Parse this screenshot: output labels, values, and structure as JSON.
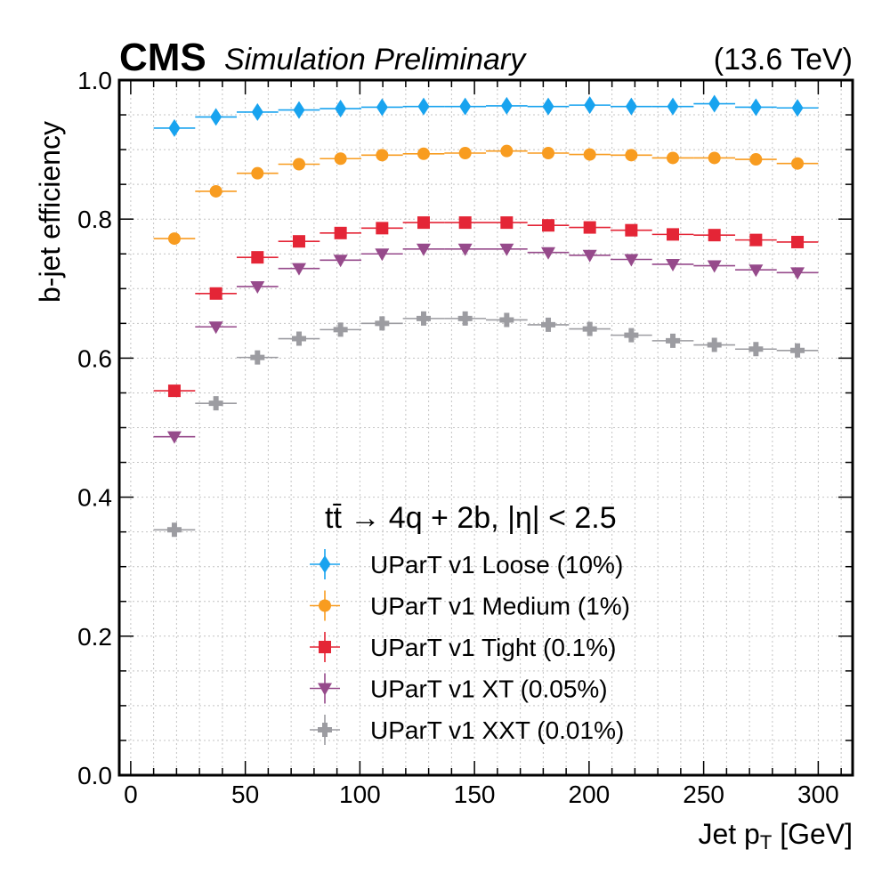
{
  "chart_data": {
    "type": "scatter",
    "header": {
      "experiment": "CMS",
      "label": "Simulation Preliminary",
      "energy": "(13.6 TeV)"
    },
    "xlabel_main": "Jet p",
    "xlabel_sub": "T",
    "xlabel_unit": " [GeV]",
    "ylabel": "b-jet efficiency",
    "xlim": [
      -5,
      315
    ],
    "ylim": [
      0.0,
      1.0
    ],
    "xticks": [
      0,
      50,
      100,
      150,
      200,
      250,
      300
    ],
    "xtick_labels": [
      "0",
      "50",
      "100",
      "150",
      "200",
      "250",
      "300"
    ],
    "yticks": [
      0.0,
      0.2,
      0.4,
      0.6,
      0.8,
      1.0
    ],
    "ytick_labels": [
      "0.0",
      "0.2",
      "0.4",
      "0.6",
      "0.8",
      "1.0"
    ],
    "grid": true,
    "legend_title": "tt̄ → 4q + 2b, |η| < 2.5",
    "legend_placement": "lower-center",
    "bin_edges": [
      10,
      28.125,
      46.25,
      64.375,
      82.5,
      100.625,
      118.75,
      136.875,
      155,
      173.125,
      191.25,
      209.375,
      227.5,
      245.625,
      263.75,
      281.875,
      300
    ],
    "x": [
      19.06,
      37.19,
      55.31,
      73.44,
      91.56,
      109.69,
      127.81,
      145.94,
      164.06,
      182.19,
      200.31,
      218.44,
      236.56,
      254.69,
      272.81,
      290.94
    ],
    "series": [
      {
        "name": "UParT v1 Loose (10%)",
        "marker": "diamond",
        "color": "#18a3ef",
        "values": [
          0.931,
          0.947,
          0.954,
          0.957,
          0.959,
          0.961,
          0.962,
          0.962,
          0.963,
          0.962,
          0.964,
          0.962,
          0.962,
          0.966,
          0.961,
          0.96
        ]
      },
      {
        "name": "UParT v1 Medium (1%)",
        "marker": "circle",
        "color": "#f89c20",
        "values": [
          0.772,
          0.84,
          0.866,
          0.879,
          0.887,
          0.892,
          0.894,
          0.895,
          0.898,
          0.895,
          0.893,
          0.892,
          0.888,
          0.888,
          0.886,
          0.88
        ]
      },
      {
        "name": "UParT v1 Tight (0.1%)",
        "marker": "square",
        "color": "#e42536",
        "values": [
          0.553,
          0.693,
          0.745,
          0.768,
          0.78,
          0.787,
          0.795,
          0.795,
          0.795,
          0.791,
          0.788,
          0.784,
          0.778,
          0.777,
          0.77,
          0.767
        ]
      },
      {
        "name": "UParT v1 XT (0.05%)",
        "marker": "triangle-down",
        "color": "#964a8b",
        "values": [
          0.487,
          0.645,
          0.703,
          0.729,
          0.741,
          0.75,
          0.757,
          0.757,
          0.757,
          0.752,
          0.748,
          0.742,
          0.735,
          0.733,
          0.727,
          0.723
        ]
      },
      {
        "name": "UParT v1 XXT (0.01%)",
        "marker": "plus",
        "color": "#9c9ca1",
        "values": [
          0.353,
          0.535,
          0.601,
          0.628,
          0.641,
          0.65,
          0.657,
          0.657,
          0.655,
          0.648,
          0.642,
          0.633,
          0.625,
          0.619,
          0.613,
          0.611
        ]
      }
    ]
  }
}
